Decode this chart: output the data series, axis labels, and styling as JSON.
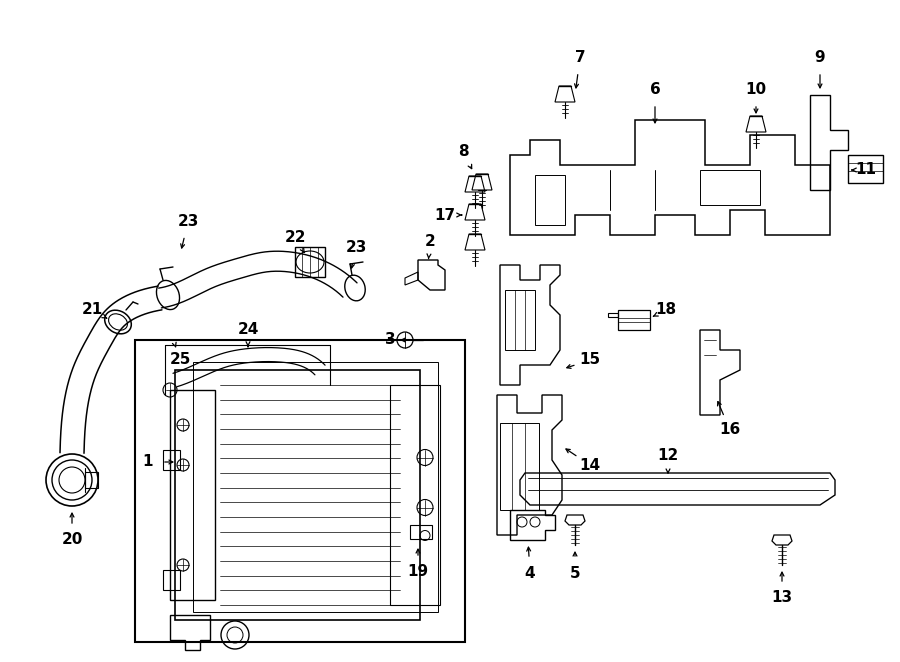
{
  "bg_color": "#ffffff",
  "line_color": "#000000",
  "fig_width": 9.0,
  "fig_height": 6.62,
  "dpi": 100,
  "lw_main": 1.0,
  "lw_thin": 0.6,
  "label_fontsize": 11,
  "label_fontsize_small": 9
}
